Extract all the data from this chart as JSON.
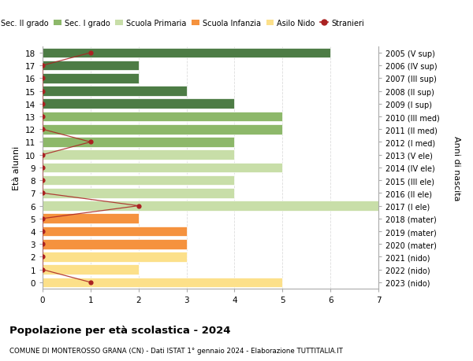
{
  "ages": [
    0,
    1,
    2,
    3,
    4,
    5,
    6,
    7,
    8,
    9,
    10,
    11,
    12,
    13,
    14,
    15,
    16,
    17,
    18
  ],
  "right_labels": [
    "2023 (nido)",
    "2022 (nido)",
    "2021 (nido)",
    "2020 (mater)",
    "2019 (mater)",
    "2018 (mater)",
    "2017 (I ele)",
    "2016 (II ele)",
    "2015 (III ele)",
    "2014 (IV ele)",
    "2013 (V ele)",
    "2012 (I med)",
    "2011 (II med)",
    "2010 (III med)",
    "2009 (I sup)",
    "2008 (II sup)",
    "2007 (III sup)",
    "2006 (IV sup)",
    "2005 (V sup)"
  ],
  "bar_values": [
    5,
    2,
    3,
    3,
    3,
    2,
    7,
    4,
    4,
    5,
    4,
    4,
    5,
    5,
    4,
    3,
    2,
    2,
    6
  ],
  "bar_colors": [
    "#fce08a",
    "#fce08a",
    "#fce08a",
    "#f5923e",
    "#f5923e",
    "#f5923e",
    "#c8dea8",
    "#c8dea8",
    "#c8dea8",
    "#c8dea8",
    "#c8dea8",
    "#8db86a",
    "#8db86a",
    "#8db86a",
    "#4d7c45",
    "#4d7c45",
    "#4d7c45",
    "#4d7c45",
    "#4d7c45"
  ],
  "stranieri_values": [
    1,
    0,
    0,
    0,
    0,
    0,
    2,
    0,
    0,
    0,
    0,
    1,
    0,
    0,
    0,
    0,
    0,
    0,
    1
  ],
  "stranieri_color": "#aa2222",
  "title": "Popolazione per età scolastica - 2024",
  "subtitle": "COMUNE DI MONTEROSSO GRANA (CN) - Dati ISTAT 1° gennaio 2024 - Elaborazione TUTTITALIA.IT",
  "ylabel": "Età alunni",
  "right_ylabel": "Anni di nascita",
  "xlim": [
    0,
    7
  ],
  "xticks": [
    0,
    1,
    2,
    3,
    4,
    5,
    6,
    7
  ],
  "grid_color": "#dddddd",
  "legend_items": [
    {
      "label": "Sec. II grado",
      "color": "#4d7c45"
    },
    {
      "label": "Sec. I grado",
      "color": "#8db86a"
    },
    {
      "label": "Scuola Primaria",
      "color": "#c8dea8"
    },
    {
      "label": "Scuola Infanzia",
      "color": "#f5923e"
    },
    {
      "label": "Asilo Nido",
      "color": "#fce08a"
    },
    {
      "label": "Stranieri",
      "color": "#aa2222"
    }
  ]
}
